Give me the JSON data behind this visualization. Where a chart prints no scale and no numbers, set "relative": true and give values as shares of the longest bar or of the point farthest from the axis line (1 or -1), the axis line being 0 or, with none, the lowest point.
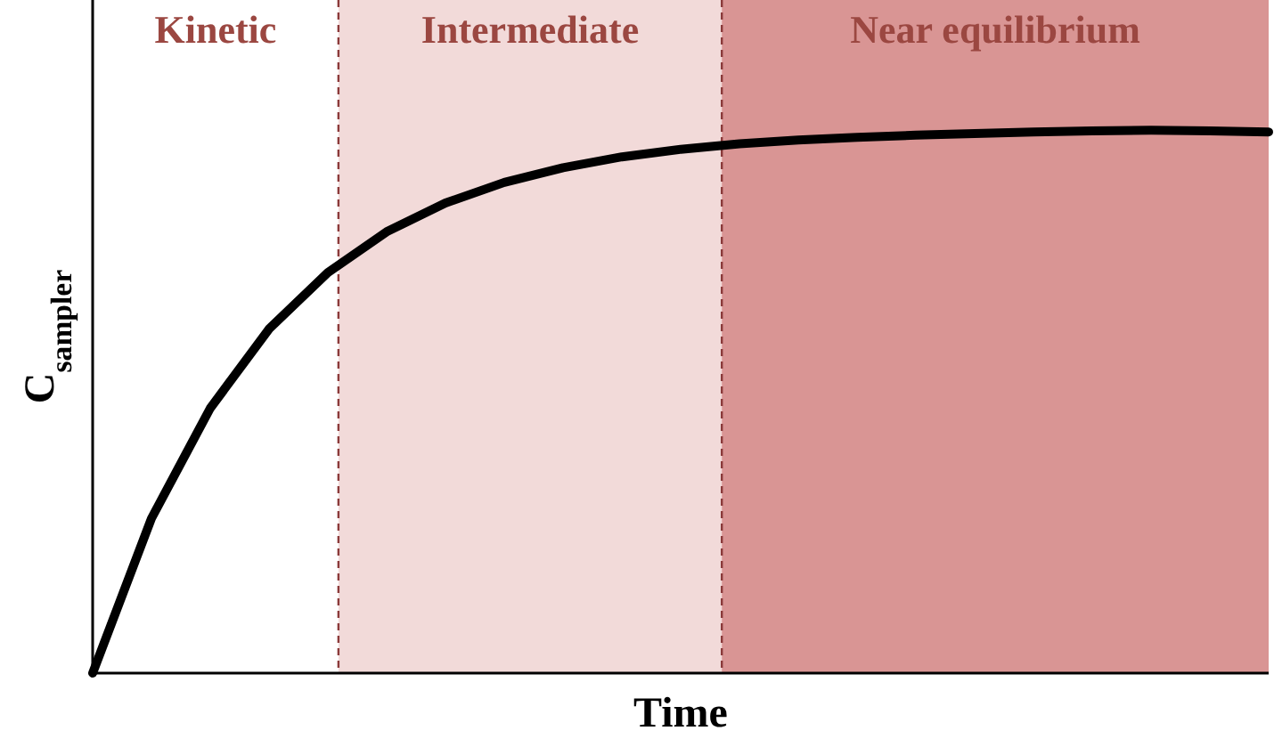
{
  "chart_data": {
    "type": "line",
    "relative": true,
    "xlabel": "Time",
    "ylabel": "C$_{sampler}$",
    "marker": "none",
    "line_style": "solid",
    "categories": [
      null,
      null,
      null,
      null,
      null,
      null,
      null,
      null,
      null,
      null,
      null,
      null,
      null,
      null,
      null,
      null,
      null,
      null,
      null,
      null,
      null
    ],
    "series": [
      {
        "color": "#000000",
        "values": [
          0,
          0.285,
          0.488,
          0.634,
          0.738,
          0.813,
          0.866,
          0.904,
          0.931,
          0.951,
          0.965,
          0.975,
          0.982,
          0.987,
          0.991,
          0.994,
          0.997,
          0.999,
          1,
          0.999,
          0.997
        ]
      }
    ],
    "annotations": [
      "Kinetic",
      "Intermediate",
      "Near equilibrium"
    ]
  }
}
